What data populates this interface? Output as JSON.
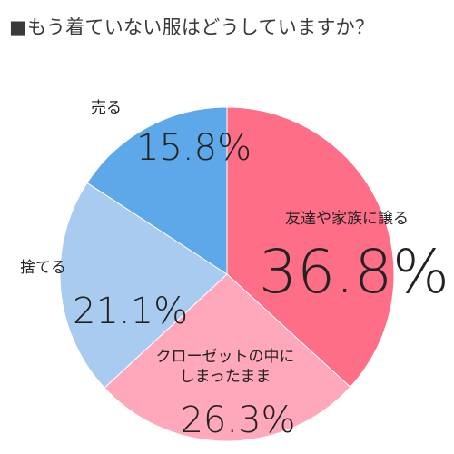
{
  "title": "■もう着ていない服はどうしていますか？",
  "chart_data": {
    "type": "pie",
    "start_angle_deg": 0,
    "direction": "clockwise",
    "slices": [
      {
        "label": "友達や家族に譲る",
        "value": 36.8,
        "display": "36.8%",
        "color": "#ff6e87"
      },
      {
        "label": "クローゼットの中にしまったまま",
        "label_lines": [
          "クローゼットの中に",
          "しまったまま"
        ],
        "value": 26.3,
        "display": "26.3%",
        "color": "#ffa7bb"
      },
      {
        "label": "捨てる",
        "value": 21.1,
        "display": "21.1%",
        "color": "#a8cbef"
      },
      {
        "label": "売る",
        "value": 15.8,
        "display": "15.8%",
        "color": "#5ca8e8"
      }
    ]
  }
}
